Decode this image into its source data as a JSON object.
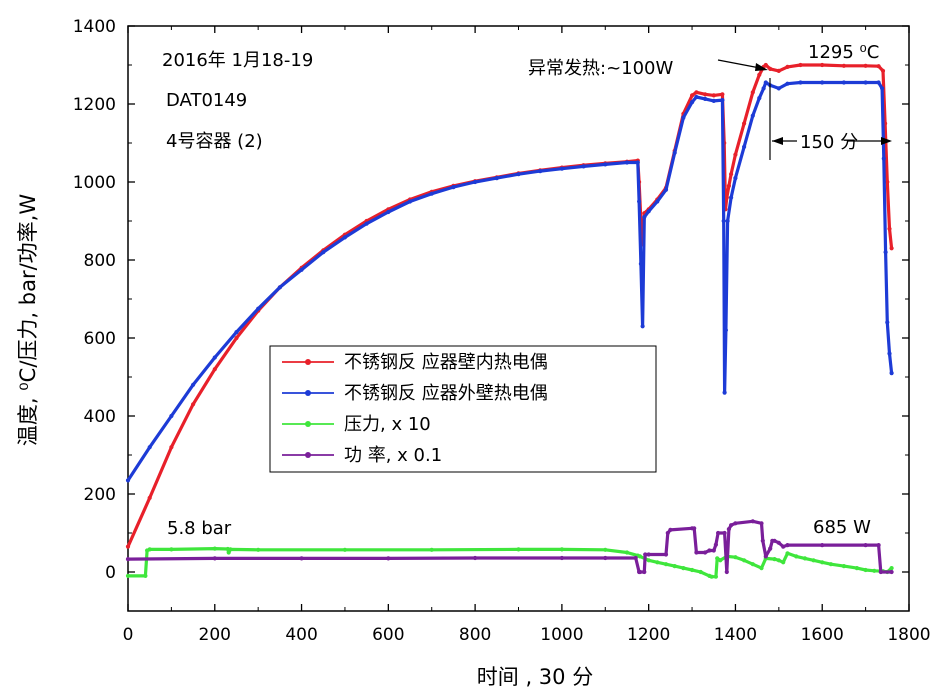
{
  "chart_data": {
    "type": "line",
    "xlabel": "时间 , 30 分",
    "ylabel": "温度, ⁰C/压力, bar/功率,W",
    "xlim": [
      0,
      1800
    ],
    "ylim": [
      -100,
      1400
    ],
    "xticks": [
      0,
      200,
      400,
      600,
      800,
      1000,
      1200,
      1400,
      1600,
      1800
    ],
    "yticks": [
      0,
      200,
      400,
      600,
      800,
      1000,
      1200,
      1400
    ],
    "grid": false,
    "legend_position": "center-left",
    "annotations": {
      "date": "2016年 1月18-19",
      "id": "DAT0149",
      "container": "4号容器 (2)",
      "anomaly": "异常发热:~100W",
      "peak": "1295 ⁰C",
      "duration": "150 分",
      "pressure": "5.8 bar",
      "power": "685 W"
    },
    "series": [
      {
        "name": "不锈钢反 应器壁内热电偶",
        "color": "#e8202a",
        "x": [
          0,
          50,
          100,
          150,
          200,
          250,
          300,
          350,
          400,
          450,
          500,
          550,
          600,
          650,
          700,
          750,
          800,
          850,
          900,
          950,
          1000,
          1050,
          1100,
          1150,
          1175,
          1178,
          1182,
          1186,
          1190,
          1200,
          1220,
          1240,
          1260,
          1280,
          1300,
          1310,
          1330,
          1350,
          1370,
          1374,
          1377,
          1380,
          1385,
          1390,
          1400,
          1420,
          1440,
          1455,
          1465,
          1470,
          1480,
          1500,
          1520,
          1550,
          1600,
          1650,
          1700,
          1730,
          1740,
          1745,
          1750,
          1755,
          1760
        ],
        "y": [
          65,
          190,
          320,
          430,
          520,
          600,
          670,
          730,
          780,
          825,
          865,
          900,
          930,
          955,
          975,
          990,
          1002,
          1012,
          1022,
          1030,
          1037,
          1043,
          1048,
          1052,
          1055,
          1000,
          900,
          840,
          920,
          930,
          955,
          985,
          1080,
          1175,
          1222,
          1230,
          1225,
          1222,
          1225,
          1100,
          930,
          960,
          990,
          1020,
          1070,
          1150,
          1230,
          1275,
          1295,
          1300,
          1290,
          1285,
          1295,
          1300,
          1300,
          1298,
          1298,
          1297,
          1285,
          1150,
          1000,
          880,
          830
        ]
      },
      {
        "name": "不锈钢反 应器外壁热电偶",
        "color": "#1d3bd6",
        "x": [
          0,
          50,
          100,
          150,
          200,
          250,
          300,
          350,
          400,
          450,
          500,
          550,
          600,
          650,
          700,
          750,
          800,
          850,
          900,
          950,
          1000,
          1050,
          1100,
          1150,
          1175,
          1178,
          1182,
          1186,
          1190,
          1200,
          1220,
          1240,
          1260,
          1280,
          1300,
          1310,
          1330,
          1350,
          1370,
          1373,
          1375,
          1378,
          1382,
          1390,
          1400,
          1420,
          1440,
          1455,
          1465,
          1470,
          1480,
          1500,
          1520,
          1550,
          1600,
          1650,
          1700,
          1730,
          1738,
          1742,
          1746,
          1750,
          1755,
          1760
        ],
        "y": [
          235,
          320,
          400,
          480,
          550,
          615,
          675,
          730,
          775,
          820,
          858,
          893,
          923,
          950,
          970,
          987,
          1000,
          1010,
          1020,
          1028,
          1034,
          1040,
          1045,
          1050,
          1050,
          950,
          790,
          630,
          910,
          925,
          950,
          980,
          1075,
          1165,
          1205,
          1218,
          1213,
          1208,
          1210,
          900,
          460,
          620,
          900,
          960,
          1010,
          1090,
          1170,
          1215,
          1240,
          1255,
          1248,
          1240,
          1252,
          1255,
          1255,
          1255,
          1255,
          1255,
          1240,
          1060,
          820,
          640,
          560,
          510
        ]
      },
      {
        "name": "压力, x 10",
        "color": "#3fe63c",
        "x": [
          0,
          40,
          44,
          50,
          100,
          200,
          230,
          232,
          236,
          300,
          500,
          700,
          900,
          1000,
          1100,
          1150,
          1175,
          1180,
          1200,
          1220,
          1240,
          1260,
          1280,
          1300,
          1320,
          1340,
          1345,
          1355,
          1358,
          1365,
          1380,
          1400,
          1420,
          1440,
          1460,
          1470,
          1490,
          1500,
          1510,
          1520,
          1540,
          1560,
          1580,
          1600,
          1620,
          1650,
          1680,
          1700,
          1720,
          1740,
          1750,
          1760
        ],
        "y": [
          -10,
          -10,
          55,
          58,
          58,
          60,
          59,
          50,
          58,
          57,
          57,
          57,
          58,
          58,
          57,
          50,
          42,
          40,
          30,
          25,
          20,
          15,
          10,
          5,
          0,
          -10,
          -12,
          -12,
          35,
          30,
          40,
          38,
          30,
          20,
          10,
          35,
          33,
          30,
          25,
          48,
          40,
          35,
          30,
          25,
          20,
          15,
          10,
          5,
          3,
          2,
          0,
          10
        ]
      },
      {
        "name": "功 率, x 0.1",
        "color": "#7a1f9a",
        "x": [
          0,
          200,
          400,
          600,
          800,
          1000,
          1100,
          1170,
          1178,
          1180,
          1190,
          1192,
          1200,
          1240,
          1244,
          1250,
          1300,
          1305,
          1310,
          1330,
          1340,
          1350,
          1355,
          1360,
          1375,
          1380,
          1385,
          1390,
          1400,
          1440,
          1460,
          1463,
          1470,
          1480,
          1485,
          1490,
          1500,
          1510,
          1520,
          1600,
          1700,
          1730,
          1735,
          1760
        ],
        "y": [
          33,
          35,
          35,
          35,
          36,
          36,
          36,
          36,
          0,
          0,
          0,
          45,
          45,
          45,
          100,
          108,
          112,
          112,
          50,
          50,
          55,
          55,
          70,
          100,
          100,
          0,
          110,
          120,
          125,
          130,
          125,
          80,
          40,
          60,
          80,
          80,
          75,
          65,
          69,
          69,
          69,
          69,
          0,
          0
        ]
      }
    ]
  }
}
